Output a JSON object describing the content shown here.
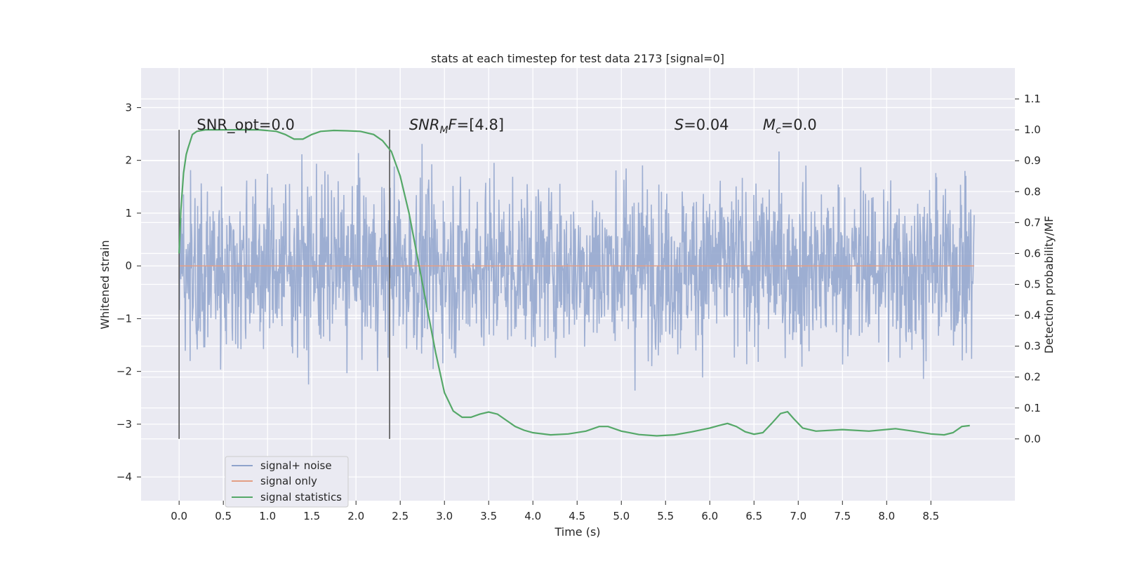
{
  "chart_data": {
    "type": "line",
    "title": "stats at each timestep for test data 2173 [signal=0]",
    "xlabel": "Time (s)",
    "ylabel": "Whitened strain",
    "ylabel_right": "Detection probability/MF",
    "xlim": [
      -0.43,
      9.45
    ],
    "ylim": [
      -4.45,
      3.75
    ],
    "ylim_right": [
      -0.2,
      1.2
    ],
    "xticks": [
      0.0,
      0.5,
      1.0,
      1.5,
      2.0,
      2.5,
      3.0,
      3.5,
      4.0,
      4.5,
      5.0,
      5.5,
      6.0,
      6.5,
      7.0,
      7.5,
      8.0,
      8.5
    ],
    "xtick_labels": [
      "0.0",
      "0.5",
      "1.0",
      "1.5",
      "2.0",
      "2.5",
      "3.0",
      "3.5",
      "4.0",
      "4.5",
      "5.0",
      "5.5",
      "6.0",
      "6.5",
      "7.0",
      "7.5",
      "8.0",
      "8.5"
    ],
    "yticks": [
      -4,
      -3,
      -2,
      -1,
      0,
      1,
      2,
      3
    ],
    "ytick_labels": [
      "−4",
      "−3",
      "−2",
      "−1",
      "0",
      "1",
      "2",
      "3"
    ],
    "yticks_right": [
      0.0,
      0.1,
      0.2,
      0.3,
      0.4,
      0.5,
      0.6,
      0.7,
      0.8,
      0.9,
      1.0,
      1.1
    ],
    "ytick_labels_right": [
      "0.0",
      "0.1",
      "0.2",
      "0.3",
      "0.4",
      "0.5",
      "0.6",
      "0.7",
      "0.8",
      "0.9",
      "1.0",
      "1.1"
    ],
    "grid": true,
    "legend_position": "lower-left",
    "series": [
      {
        "name": "signal+ noise",
        "color": "#8fa3cc",
        "x_range": [
          0.0,
          8.99
        ],
        "noise_std": 0.8,
        "noise_peak_range": [
          -4.0,
          3.5
        ]
      },
      {
        "name": "signal only",
        "color": "#e39f84",
        "x": [
          0.0,
          8.99
        ],
        "y": [
          0.0,
          0.0
        ]
      },
      {
        "name": "signal statistics",
        "color": "#55a868",
        "axis": "right",
        "x": [
          0.0,
          0.02,
          0.05,
          0.08,
          0.1,
          0.15,
          0.2,
          0.3,
          0.5,
          0.7,
          0.9,
          1.1,
          1.2,
          1.3,
          1.4,
          1.5,
          1.6,
          1.75,
          1.9,
          2.05,
          2.2,
          2.3,
          2.4,
          2.5,
          2.6,
          2.7,
          2.8,
          2.9,
          3.0,
          3.1,
          3.2,
          3.3,
          3.4,
          3.5,
          3.6,
          3.7,
          3.8,
          3.9,
          4.0,
          4.2,
          4.4,
          4.6,
          4.75,
          4.85,
          5.0,
          5.2,
          5.4,
          5.6,
          5.8,
          6.0,
          6.1,
          6.2,
          6.3,
          6.4,
          6.5,
          6.6,
          6.7,
          6.8,
          6.88,
          6.95,
          7.05,
          7.2,
          7.5,
          7.8,
          8.1,
          8.3,
          8.5,
          8.65,
          8.75,
          8.85,
          8.94
        ],
        "y": [
          0.6,
          0.74,
          0.86,
          0.92,
          0.94,
          0.985,
          0.995,
          1.0,
          1.0,
          1.0,
          1.0,
          0.995,
          0.985,
          0.97,
          0.97,
          0.985,
          0.995,
          0.998,
          0.997,
          0.995,
          0.985,
          0.965,
          0.93,
          0.85,
          0.73,
          0.58,
          0.43,
          0.28,
          0.15,
          0.09,
          0.07,
          0.07,
          0.08,
          0.087,
          0.08,
          0.06,
          0.04,
          0.028,
          0.02,
          0.013,
          0.016,
          0.025,
          0.04,
          0.04,
          0.025,
          0.014,
          0.01,
          0.013,
          0.023,
          0.035,
          0.043,
          0.05,
          0.04,
          0.023,
          0.015,
          0.02,
          0.05,
          0.082,
          0.088,
          0.065,
          0.035,
          0.025,
          0.03,
          0.025,
          0.033,
          0.025,
          0.016,
          0.013,
          0.02,
          0.04,
          0.043
        ]
      }
    ],
    "vertical_lines": [
      0.0,
      2.38
    ],
    "annotations": [
      {
        "x": 0.2,
        "y_right": 1.0,
        "parts": [
          {
            "t": "SNR_opt=0.0"
          }
        ]
      },
      {
        "x": 2.6,
        "y_right": 1.0,
        "parts": [
          {
            "t": "SNR",
            "i": true
          },
          {
            "t": "M",
            "i": true,
            "sub": true
          },
          {
            "t": "F",
            "i": true
          },
          {
            "t": "=[4.8]"
          }
        ]
      },
      {
        "x": 5.6,
        "y_right": 1.0,
        "parts": [
          {
            "t": "S",
            "i": true
          },
          {
            "t": "=0.04"
          }
        ]
      },
      {
        "x": 6.6,
        "y_right": 1.0,
        "parts": [
          {
            "t": "M",
            "i": true
          },
          {
            "t": "c",
            "i": true,
            "sub": true
          },
          {
            "t": "=0.0"
          }
        ]
      }
    ]
  }
}
